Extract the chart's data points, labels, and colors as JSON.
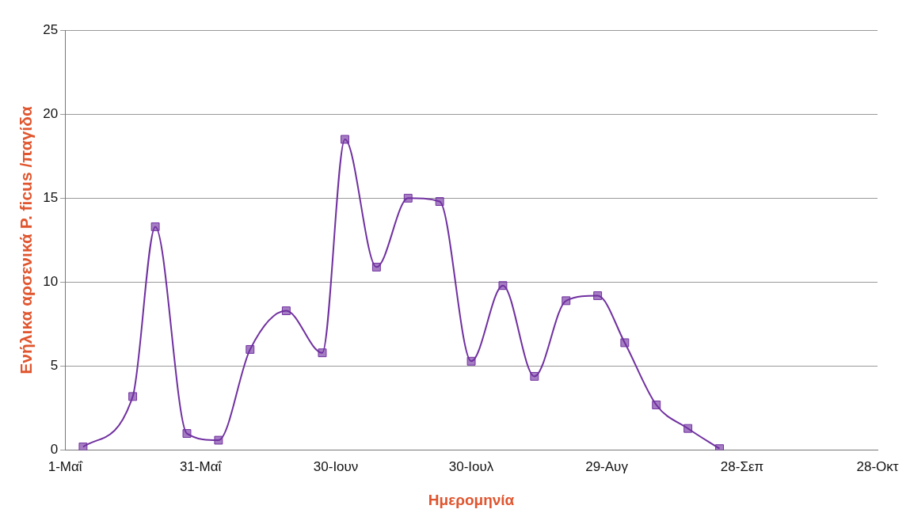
{
  "chart_data": {
    "type": "line",
    "xlabel": "Ημερομηνία",
    "ylabel": "Ενήλικα αρσενικά P. ficus /παγίδα",
    "x": [
      "--05-05",
      "--05-16",
      "--05-21",
      "--05-28",
      "--06-04",
      "--06-11",
      "--06-19",
      "--06-27",
      "--07-02",
      "--07-09",
      "--07-16",
      "--07-23",
      "--07-30",
      "--08-06",
      "--08-13",
      "--08-20",
      "--08-27",
      "--09-02",
      "--09-09",
      "--09-16",
      "--09-23"
    ],
    "series": [
      {
        "color": "#7030a0",
        "values": [
          0.2,
          3.2,
          13.3,
          1.0,
          0.6,
          6.0,
          8.3,
          5.8,
          18.5,
          10.9,
          15.0,
          14.8,
          5.3,
          9.8,
          4.4,
          8.9,
          9.2,
          6.4,
          2.7,
          1.3,
          0.1
        ]
      }
    ],
    "xlim": [
      "--05-01",
      "--10-28"
    ],
    "xticks": [
      {
        "value": "--05-01",
        "label": "1-Μαΐ"
      },
      {
        "value": "--05-31",
        "label": "31-Μαΐ"
      },
      {
        "value": "--06-30",
        "label": "30-Ιουν"
      },
      {
        "value": "--07-30",
        "label": "30-Ιουλ"
      },
      {
        "value": "--08-29",
        "label": "29-Αυγ"
      },
      {
        "value": "--09-28",
        "label": "28-Σεπ"
      },
      {
        "value": "--10-28",
        "label": "28-Οκτ"
      }
    ],
    "ylim": [
      0,
      25
    ],
    "yticks": [
      0,
      5,
      10,
      15,
      20,
      25
    ],
    "grid": "y",
    "marker": "square",
    "legend": false
  }
}
